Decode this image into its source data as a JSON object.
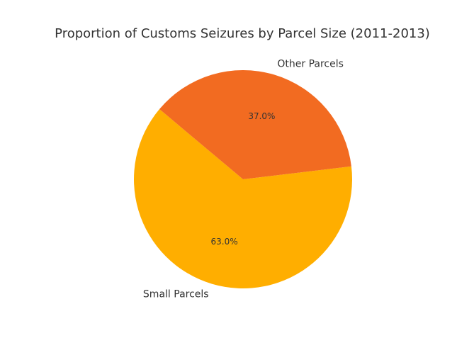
{
  "chart_data": {
    "type": "pie",
    "title": "Proportion of Customs Seizures by Parcel Size (2011-2013)",
    "slices": [
      {
        "label": "Small Parcels",
        "value": 63.0,
        "pct_label": "63.0%",
        "color": "#FFAE00"
      },
      {
        "label": "Other Parcels",
        "value": 37.0,
        "pct_label": "37.0%",
        "color": "#F26B21"
      }
    ],
    "start_angle_deg": 140,
    "direction": "counterclockwise",
    "legend": "none"
  }
}
